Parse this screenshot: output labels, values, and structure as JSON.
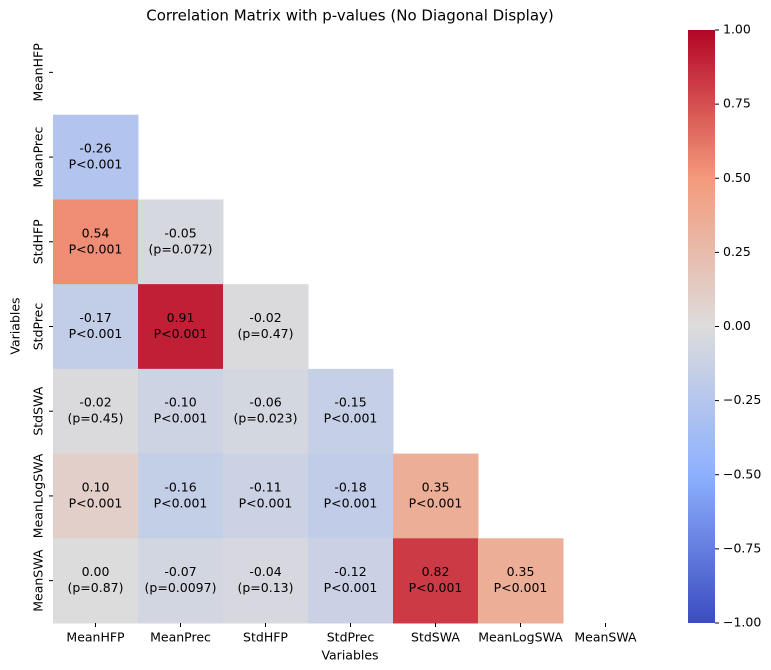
{
  "chart_data": {
    "type": "heatmap",
    "title": "Correlation Matrix with p-values (No Diagonal Display)",
    "xlabel": "Variables",
    "ylabel": "Variables",
    "x_categories": [
      "MeanHFP",
      "MeanPrec",
      "StdHFP",
      "StdPrec",
      "StdSWA",
      "MeanLogSWA",
      "MeanSWA"
    ],
    "y_categories": [
      "MeanHFP",
      "MeanPrec",
      "StdHFP",
      "StdPrec",
      "StdSWA",
      "MeanLogSWA",
      "MeanSWA"
    ],
    "values": [
      [
        null,
        null,
        null,
        null,
        null,
        null,
        null
      ],
      [
        -0.26,
        null,
        null,
        null,
        null,
        null,
        null
      ],
      [
        0.54,
        -0.05,
        null,
        null,
        null,
        null,
        null
      ],
      [
        -0.17,
        0.91,
        -0.02,
        null,
        null,
        null,
        null
      ],
      [
        -0.02,
        -0.1,
        -0.06,
        -0.15,
        null,
        null,
        null
      ],
      [
        0.1,
        -0.16,
        -0.11,
        -0.18,
        0.35,
        null,
        null
      ],
      [
        0.0,
        -0.07,
        -0.04,
        -0.12,
        0.82,
        0.35,
        null
      ]
    ],
    "value_labels": [
      [
        null,
        null,
        null,
        null,
        null,
        null,
        null
      ],
      [
        "-0.26",
        null,
        null,
        null,
        null,
        null,
        null
      ],
      [
        "0.54",
        "-0.05",
        null,
        null,
        null,
        null,
        null
      ],
      [
        "-0.17",
        "0.91",
        "-0.02",
        null,
        null,
        null,
        null
      ],
      [
        "-0.02",
        "-0.10",
        "-0.06",
        "-0.15",
        null,
        null,
        null
      ],
      [
        "0.10",
        "-0.16",
        "-0.11",
        "-0.18",
        "0.35",
        null,
        null
      ],
      [
        "0.00",
        "-0.07",
        "-0.04",
        "-0.12",
        "0.82",
        "0.35",
        null
      ]
    ],
    "p_labels": [
      [
        null,
        null,
        null,
        null,
        null,
        null,
        null
      ],
      [
        "P<0.001",
        null,
        null,
        null,
        null,
        null,
        null
      ],
      [
        "P<0.001",
        "(p=0.072)",
        null,
        null,
        null,
        null,
        null
      ],
      [
        "P<0.001",
        "P<0.001",
        "(p=0.47)",
        null,
        null,
        null,
        null
      ],
      [
        "(p=0.45)",
        "P<0.001",
        "(p=0.023)",
        "P<0.001",
        null,
        null,
        null
      ],
      [
        "P<0.001",
        "P<0.001",
        "P<0.001",
        "P<0.001",
        "P<0.001",
        null,
        null
      ],
      [
        "(p=0.87)",
        "(p=0.0097)",
        "(p=0.13)",
        "P<0.001",
        "P<0.001",
        "P<0.001",
        null
      ]
    ],
    "zlim": [
      -1,
      1
    ],
    "zticks": [
      {
        "value": 1,
        "label": "1.00"
      },
      {
        "value": 0.75,
        "label": "0.75"
      },
      {
        "value": 0.5,
        "label": "0.50"
      },
      {
        "value": 0.25,
        "label": "0.25"
      },
      {
        "value": 0,
        "label": "0.00"
      },
      {
        "value": -0.25,
        "label": "−0.25"
      },
      {
        "value": -0.5,
        "label": "−0.50"
      },
      {
        "value": -0.75,
        "label": "−0.75"
      },
      {
        "value": -1,
        "label": "−1.00"
      }
    ],
    "colormap": [
      "#3b4cc0",
      "#8db0fe",
      "#dddcdc",
      "#f49a7b",
      "#b40426"
    ]
  }
}
